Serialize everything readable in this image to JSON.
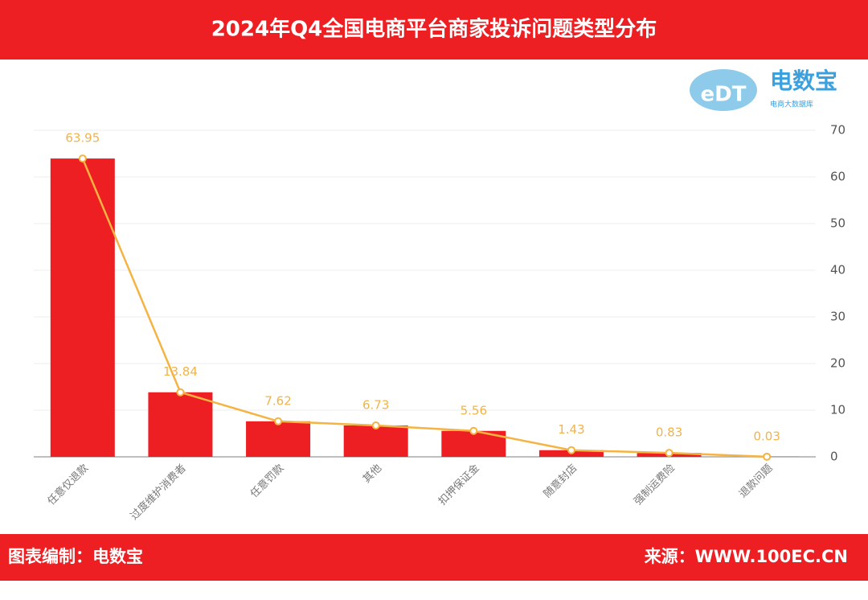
{
  "chart_data": {
    "type": "bar-line",
    "title": "2024年Q4全国电商平台商家投诉问题类型分布",
    "categories": [
      "任意仅退款",
      "过度维护消费者",
      "任意罚款",
      "其他",
      "扣押保证金",
      "随意封店",
      "强制运费险",
      "退款问题"
    ],
    "values": [
      63.95,
      13.84,
      7.62,
      6.73,
      5.56,
      1.43,
      0.83,
      0.03
    ],
    "bar_color": "#ee1f23",
    "line_color": "#f5b342",
    "ylim": [
      0,
      70
    ],
    "yticks": [
      0,
      10,
      20,
      30,
      40,
      50,
      60,
      70
    ],
    "grid": true
  },
  "logo": {
    "mark": "eDT",
    "name": "电数宝",
    "tagline": "电商大数据库"
  },
  "footer": {
    "left": "图表编制：电数宝",
    "right": "来源：WWW.100EC.CN"
  }
}
